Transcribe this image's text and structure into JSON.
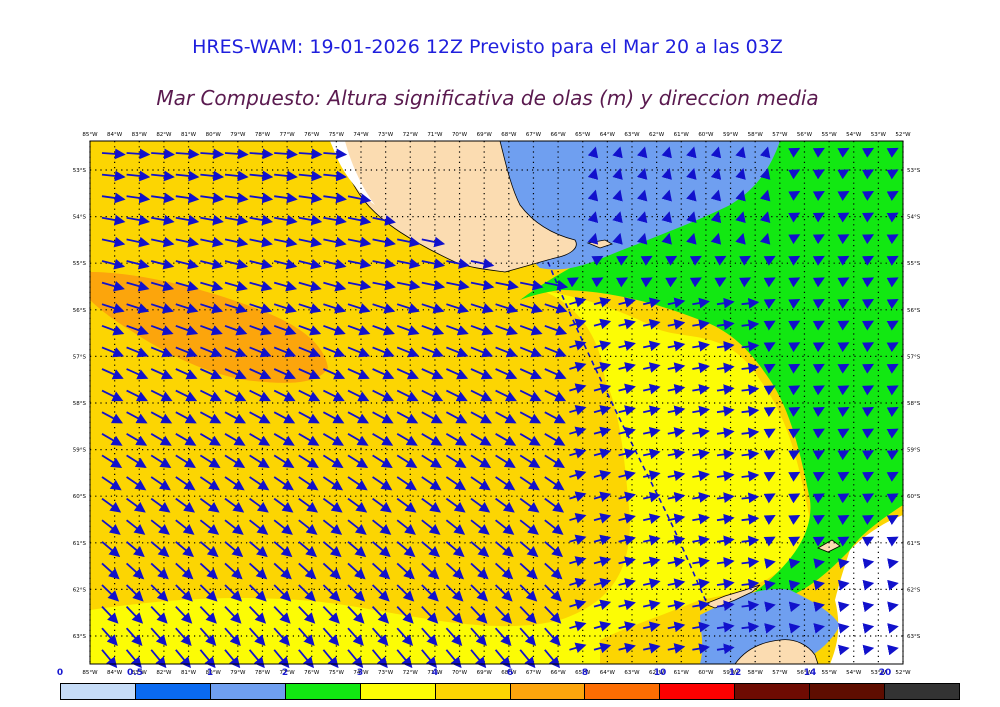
{
  "header": {
    "title": "HRES-WAM: 19-01-2026 12Z Previsto para el Mar 20 a las 03Z",
    "subtitle": "Mar Compuesto: Altura significativa de olas (m) y direccion media"
  },
  "axes": {
    "lon_labels": [
      "85°W",
      "84°W",
      "83°W",
      "82°W",
      "81°W",
      "80°W",
      "79°W",
      "78°W",
      "77°W",
      "76°W",
      "75°W",
      "74°W",
      "73°W",
      "72°W",
      "71°W",
      "70°W",
      "69°W",
      "68°W",
      "67°W",
      "66°W",
      "65°W",
      "64°W",
      "63°W",
      "62°W",
      "61°W",
      "60°W",
      "59°W",
      "58°W",
      "57°W",
      "56°W",
      "55°W",
      "54°W",
      "53°W",
      "52°W"
    ],
    "lat_labels": [
      "53°S",
      "54°S",
      "55°S",
      "56°S",
      "57°S",
      "58°S",
      "59°S",
      "60°S",
      "61°S",
      "62°S",
      "63°S"
    ]
  },
  "legend": {
    "ticks": [
      "0",
      "0.5",
      "1",
      "2",
      "3",
      "4",
      "6",
      "8",
      "10",
      "12",
      "14",
      "20"
    ],
    "colors": [
      "#c6dcf7",
      "#0a6af0",
      "#6f9ff0",
      "#12e812",
      "#fcfc05",
      "#fcd502",
      "#fca50c",
      "#fc6d02",
      "#fc0000",
      "#6e0b02",
      "#5e0d00",
      "#333333"
    ]
  },
  "colors": {
    "land": "#fbdcb1",
    "wave_arrow": "#1111cc",
    "grid_dots": "#000000",
    "title": "#1f1fdd",
    "subtitle": "#5a1a4f"
  }
}
